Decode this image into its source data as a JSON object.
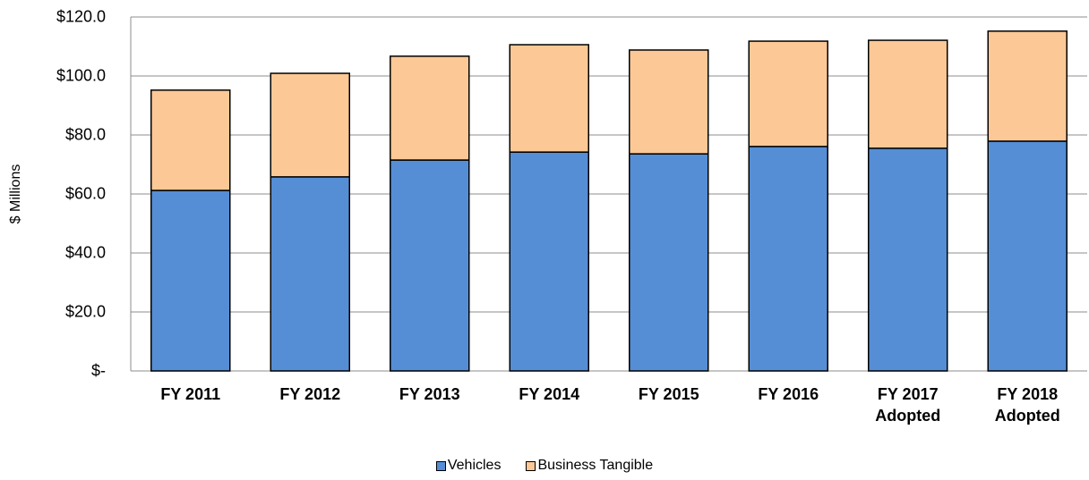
{
  "chart_data": {
    "type": "stacked_bar",
    "y_label": "$ Millions",
    "categories": [
      "FY 2011",
      "FY 2012",
      "FY 2013",
      "FY 2014",
      "FY 2015",
      "FY 2016",
      "FY 2017 Adopted",
      "FY 2018 Adopted"
    ],
    "series": [
      {
        "name": "Vehicles",
        "color": "#558ed5",
        "values": [
          61.2,
          65.8,
          71.5,
          74.2,
          73.6,
          76.1,
          75.5,
          77.9
        ]
      },
      {
        "name": "Business Tangible",
        "color": "#fcc896",
        "values": [
          34.0,
          35.1,
          35.2,
          36.4,
          35.2,
          35.7,
          36.6,
          37.3
        ]
      }
    ],
    "ylim": [
      0,
      120
    ],
    "yticks": [
      {
        "value": 0,
        "label": "$-"
      },
      {
        "value": 20,
        "label": "$20.0"
      },
      {
        "value": 40,
        "label": "$40.0"
      },
      {
        "value": 60,
        "label": "$60.0"
      },
      {
        "value": 80,
        "label": "$80.0"
      },
      {
        "value": 100,
        "label": "$100.0"
      },
      {
        "value": 120,
        "label": "$120.0"
      }
    ],
    "grid": true,
    "legend": "bottom"
  }
}
